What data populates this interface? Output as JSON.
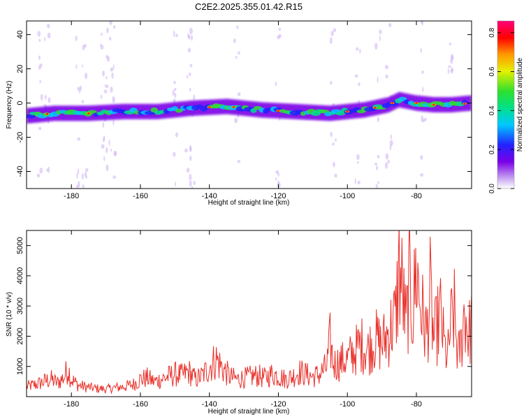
{
  "title": "C2E2.2025.355.01.42.R15",
  "chart_data": [
    {
      "type": "heatmap",
      "xlabel": "Height of straight line (km)",
      "ylabel": "Frequency (Hz)",
      "xlim": [
        -193,
        -64
      ],
      "ylim": [
        -50,
        48
      ],
      "xticks": [
        "-180",
        "-160",
        "-140",
        "-120",
        "-100",
        "-80"
      ],
      "xtick_values": [
        -180,
        -160,
        -140,
        -120,
        -100,
        -80
      ],
      "yticks": [
        "40",
        "20",
        "0",
        "-20",
        "-40"
      ],
      "ytick_values": [
        40,
        20,
        0,
        -20,
        -40
      ],
      "colorbar": {
        "label": "Normalized spectral amplitude",
        "range": [
          0,
          0.86
        ],
        "ticks": [
          "0.0",
          "0.2",
          "0.4",
          "0.6",
          "0.8"
        ],
        "tick_values": [
          0.0,
          0.2,
          0.4,
          0.6,
          0.8
        ],
        "colors": [
          "#ffffff",
          "#c9a6f2",
          "#7a00e6",
          "#2222ff",
          "#00c8ff",
          "#00e08a",
          "#2ee02e",
          "#e6f000",
          "#ff9900",
          "#ff0000",
          "#ff007a"
        ]
      },
      "ridge": {
        "x": [
          -193,
          -185,
          -175,
          -165,
          -155,
          -145,
          -135,
          -125,
          -115,
          -105,
          -95,
          -88,
          -85,
          -80,
          -75,
          -70,
          -64
        ],
        "freq": [
          -7.5,
          -6,
          -6,
          -5,
          -5,
          -3,
          -2,
          -4,
          -5,
          -6,
          -4,
          -1,
          2,
          0,
          -1,
          -1,
          0
        ]
      },
      "grid": false
    },
    {
      "type": "line",
      "xlabel": "Height of straight line (km)",
      "ylabel": "SNR (10 * v/v)",
      "xlim": [
        -193,
        -64
      ],
      "ylim": [
        0,
        5500
      ],
      "xticks": [
        "-180",
        "-160",
        "-140",
        "-120",
        "-100",
        "-80"
      ],
      "xtick_values": [
        -180,
        -160,
        -140,
        -120,
        -100,
        -80
      ],
      "yticks": [
        "1000",
        "2000",
        "3000",
        "4000",
        "5000"
      ],
      "ytick_values": [
        1000,
        2000,
        3000,
        4000,
        5000
      ],
      "series": [
        {
          "color": "#e8302a",
          "x": [
            -193,
            -190,
            -188,
            -186,
            -184,
            -182,
            -181,
            -180,
            -178,
            -176,
            -174,
            -172,
            -170,
            -168,
            -166,
            -164,
            -162,
            -160,
            -158,
            -156,
            -154,
            -152,
            -150,
            -148,
            -146,
            -144,
            -142,
            -140,
            -138,
            -136,
            -134,
            -132,
            -130,
            -128,
            -126,
            -124,
            -122,
            -120,
            -118,
            -116,
            -114,
            -112,
            -110,
            -108,
            -106,
            -105,
            -104,
            -102,
            -100,
            -98,
            -96,
            -94,
            -92,
            -90,
            -88,
            -86,
            -85,
            -84,
            -83,
            -82,
            -81,
            -80,
            -79,
            -78,
            -77,
            -76,
            -75,
            -74,
            -73,
            -72,
            -71,
            -70,
            -69,
            -68,
            -67,
            -66,
            -65,
            -64
          ],
          "y": [
            400,
            500,
            600,
            700,
            550,
            800,
            1150,
            700,
            450,
            400,
            350,
            320,
            300,
            350,
            380,
            420,
            500,
            700,
            750,
            600,
            700,
            800,
            900,
            850,
            1000,
            700,
            850,
            1200,
            1500,
            1100,
            800,
            700,
            750,
            800,
            850,
            750,
            900,
            850,
            700,
            800,
            1000,
            900,
            800,
            900,
            1200,
            2200,
            1300,
            1400,
            1500,
            1800,
            2100,
            1900,
            2300,
            2100,
            2600,
            3200,
            5200,
            4200,
            2800,
            4500,
            3300,
            5200,
            3900,
            3100,
            2500,
            4100,
            2300,
            2800,
            3300,
            2100,
            1500,
            2900,
            3300,
            1600,
            2100,
            3600,
            2400,
            2900
          ]
        }
      ],
      "grid": false
    }
  ]
}
